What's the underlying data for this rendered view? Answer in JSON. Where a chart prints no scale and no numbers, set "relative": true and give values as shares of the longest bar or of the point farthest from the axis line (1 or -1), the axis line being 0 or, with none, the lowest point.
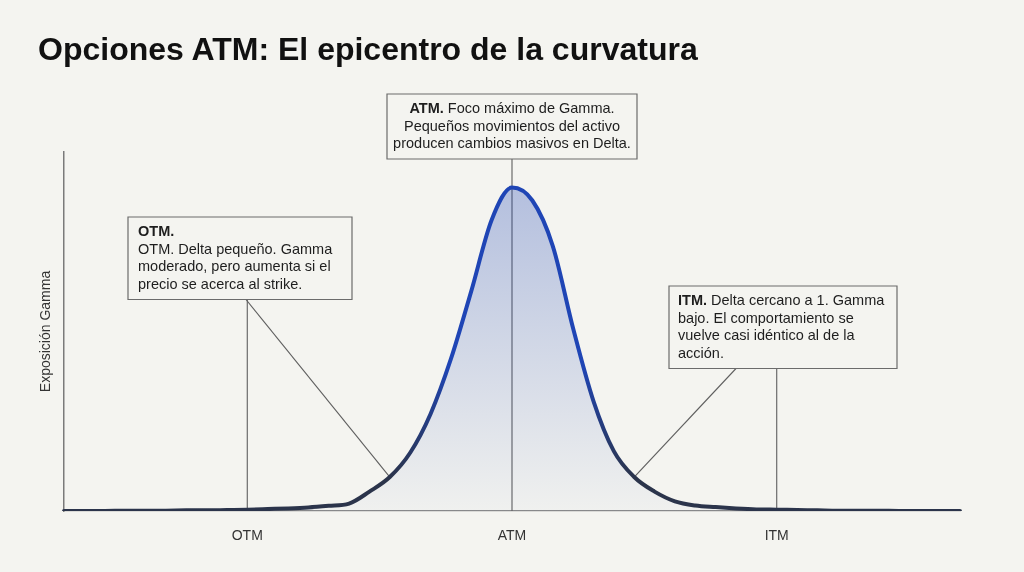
{
  "chart_data": {
    "type": "area",
    "title": "Opciones ATM: El epicentro de la curvatura",
    "ylabel": "Exposición Gamma",
    "relative": true,
    "categories": [
      null,
      null,
      null,
      null,
      null,
      null,
      null,
      null,
      null,
      "OTM",
      null,
      null,
      null,
      null,
      null,
      null,
      null,
      null,
      null,
      null,
      null,
      null,
      "ATM",
      null,
      null,
      null,
      null,
      null,
      null,
      null,
      null,
      null,
      null,
      null,
      null,
      "ITM",
      null,
      null,
      null,
      null,
      null,
      null,
      null,
      null,
      null
    ],
    "values": [
      0,
      0,
      0,
      0.001,
      0.001,
      0.001,
      0.002,
      0.002,
      0.003,
      0.004,
      0.006,
      0.008,
      0.011,
      0.016,
      0.023,
      0.06,
      0.105,
      0.18,
      0.3,
      0.47,
      0.68,
      0.9,
      1,
      0.96,
      0.82,
      0.565,
      0.34,
      0.185,
      0.105,
      0.06,
      0.03,
      0.017,
      0.012,
      0.008,
      0.005,
      0.004,
      0.003,
      0.002,
      0.001,
      0.001,
      0.001,
      0,
      0,
      0,
      0
    ],
    "color": "#1f45b5",
    "ref_lines": [
      {
        "axis": "x",
        "value": "OTM",
        "color": "#5e5e5e"
      },
      {
        "axis": "x",
        "value": "ATM",
        "color": "#5e5e5e"
      },
      {
        "axis": "x",
        "value": "ITM",
        "color": "#5e5e5e"
      }
    ],
    "annotations": [
      "OTM. OTM. Delta pequeño. Gamma moderado, pero aumenta si el precio se acerca al strike.",
      "ATM. Foco máximo de Gamma. Pequeños movimientos del activo producen cambios masivos en Delta.",
      "ITM. Delta cercano a 1. Gamma bajo. El comportamiento se vuelve casi idéntico al de la acción."
    ]
  }
}
